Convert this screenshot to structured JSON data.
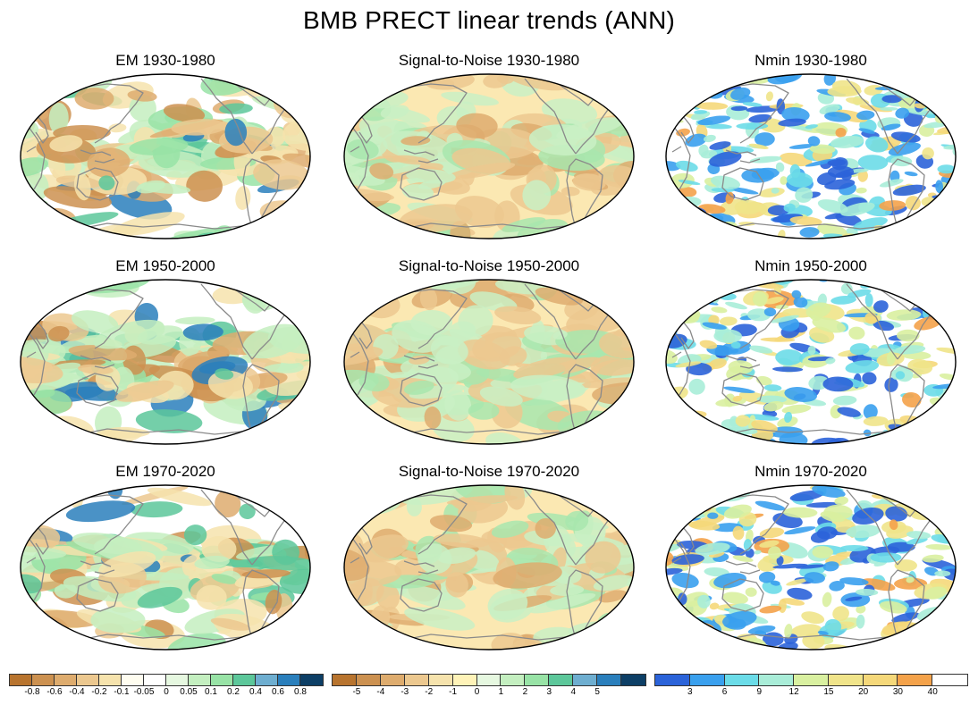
{
  "figure": {
    "title": "BMB PRECT linear trends (ANN)"
  },
  "panels": [
    {
      "title": "EM 1930-1980",
      "kind": "em"
    },
    {
      "title": "Signal-to-Noise 1930-1980",
      "kind": "sn"
    },
    {
      "title": "Nmin 1930-1980",
      "kind": "nmin"
    },
    {
      "title": "EM 1950-2000",
      "kind": "em"
    },
    {
      "title": "Signal-to-Noise 1950-2000",
      "kind": "sn"
    },
    {
      "title": "Nmin 1950-2000",
      "kind": "nmin"
    },
    {
      "title": "EM 1970-2020",
      "kind": "em"
    },
    {
      "title": "Signal-to-Noise 1970-2020",
      "kind": "sn"
    },
    {
      "title": "Nmin 1970-2020",
      "kind": "nmin"
    }
  ],
  "colorbars": [
    {
      "name": "em",
      "colors": [
        "#b8742e",
        "#cc9150",
        "#deac6e",
        "#ecc88f",
        "#f6e3ad",
        "#fffdf0",
        "#ffffff",
        "#e6f8e0",
        "#c4efc0",
        "#98e3a6",
        "#5cc79a",
        "#6eaed0",
        "#2a7fbc",
        "#0d3f66"
      ],
      "labels": [
        "-0.8",
        "-0.6",
        "-0.4",
        "-0.2",
        "-0.1",
        "-0.05",
        "0",
        "0.05",
        "0.1",
        "0.2",
        "0.4",
        "0.6",
        "0.8"
      ]
    },
    {
      "name": "sn",
      "colors": [
        "#b8742e",
        "#cc9150",
        "#deac6e",
        "#ecc88f",
        "#f6e3ad",
        "#fff3b8",
        "#e6f8e0",
        "#c4efc0",
        "#98e3a6",
        "#5cc79a",
        "#6eaed0",
        "#2a7fbc",
        "#0d3f66"
      ],
      "labels": [
        "-5",
        "-4",
        "-3",
        "-2",
        "-1",
        "0",
        "1",
        "2",
        "3",
        "4",
        "5"
      ]
    },
    {
      "name": "nmin",
      "colors": [
        "#2b63d9",
        "#3aa0ee",
        "#6bdce8",
        "#a9edd8",
        "#d9f0a0",
        "#f0e48a",
        "#f5d87a",
        "#f4a24a",
        "#ffffff"
      ],
      "labels": [
        "3",
        "6",
        "9",
        "12",
        "15",
        "20",
        "30",
        "40"
      ]
    }
  ]
}
